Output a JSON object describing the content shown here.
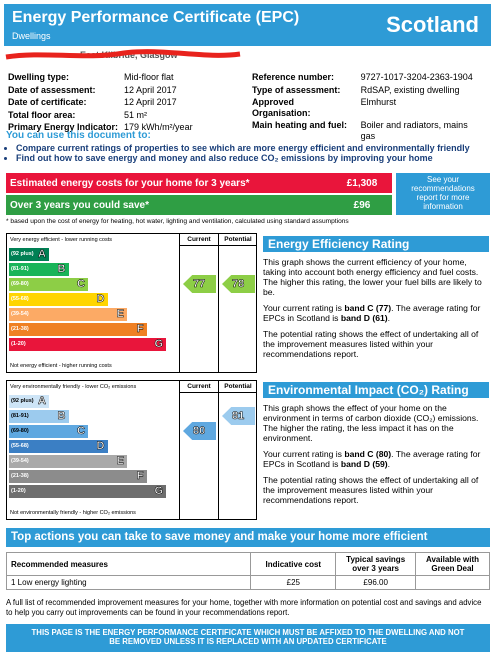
{
  "header": {
    "title": "Energy Performance Certificate (EPC)",
    "subtitle": "Dwellings",
    "country": "Scotland"
  },
  "address": "East Kilbride, Glasgow",
  "details_left": [
    [
      "Dwelling type:",
      "Mid-floor flat"
    ],
    [
      "Date of assessment:",
      "12 April 2017"
    ],
    [
      "Date of certificate:",
      "12 April 2017"
    ],
    [
      "Total floor area:",
      "51 m²"
    ],
    [
      "Primary Energy Indicator:",
      "179 kWh/m²/year"
    ]
  ],
  "details_right": [
    [
      "Reference number:",
      "9727-1017-3204-2363-1904"
    ],
    [
      "Type of assessment:",
      "RdSAP, existing dwelling"
    ],
    [
      "Approved Organisation:",
      "Elmhurst"
    ],
    [
      "Main heating and fuel:",
      "Boiler and radiators, mains gas"
    ]
  ],
  "uses": {
    "heading": "You can use this document to:",
    "bullets": [
      "Compare current ratings of properties to see which are more energy efficient and environmentally friendly",
      "Find out how to save energy and money and also reduce CO₂ emissions by improving your home"
    ]
  },
  "costs": {
    "rows": [
      [
        "Estimated energy costs for your home for 3 years*",
        "£1,308"
      ],
      [
        "Over 3 years you could save*",
        "£96"
      ]
    ],
    "side": "See your recommendations report for more information",
    "footnote": "* based upon the cost of energy for heating, hot water, lighting and ventilation, calculated using standard assumptions"
  },
  "efficiency": {
    "top_label": "Very energy efficient - lower running costs",
    "bottom_label": "Not energy efficient - higher running costs",
    "current_header": "Current",
    "potential_header": "Potential",
    "ranges": [
      "(92 plus)",
      "(81-91)",
      "(69-80)",
      "(55-68)",
      "(39-54)",
      "(21-38)",
      "(1-20)"
    ],
    "letters": [
      "A",
      "B",
      "C",
      "D",
      "E",
      "F",
      "G"
    ],
    "colors": [
      "#008054",
      "#19b459",
      "#8dce46",
      "#ffd500",
      "#fcaa65",
      "#ef8023",
      "#e9153b"
    ],
    "current": 77,
    "potential": 78,
    "heading": "Energy Efficiency Rating",
    "paragraphs": [
      [
        "This graph shows the current efficiency of your home, taking into account both energy efficiency and fuel costs. The higher this rating, the lower your fuel bills are likely to be."
      ],
      [
        "Your current rating is ",
        "band C (77)",
        ". The average rating for EPCs in Scotland is ",
        "band D (61)",
        "."
      ],
      [
        "The potential rating shows the effect of undertaking all of the improvement measures listed within your recommendations report."
      ]
    ]
  },
  "impact": {
    "top_label": "Very environmentally friendly - lower CO₂ emissions",
    "bottom_label": "Not environmentally friendly - higher CO₂ emissions",
    "current_header": "Current",
    "potential_header": "Potential",
    "ranges": [
      "(92 plus)",
      "(81-91)",
      "(69-80)",
      "(55-68)",
      "(39-54)",
      "(21-38)",
      "(1-20)"
    ],
    "letters": [
      "A",
      "B",
      "C",
      "D",
      "E",
      "F",
      "G"
    ],
    "colors": [
      "#cde4f6",
      "#9ccbee",
      "#5fa8e0",
      "#3b7fc4",
      "#a9a9a9",
      "#8c8c8c",
      "#6e6e6e"
    ],
    "current": 80,
    "potential": 81,
    "heading": "Environmental Impact (CO₂) Rating",
    "paragraphs": [
      [
        "This graph shows the effect of your home on the environment in terms of carbon dioxide (CO₂) emissions. The higher the rating, the less impact it has on the environment."
      ],
      [
        "Your current rating is ",
        "band C (80)",
        ". The average rating for EPCs in Scotland is ",
        "band D (59)",
        "."
      ],
      [
        "The potential rating shows the effect of undertaking all of the improvement measures listed within your recommendations report."
      ]
    ]
  },
  "actions": {
    "heading": "Top actions you can take to save money and make your home more efficient",
    "columns": [
      "Recommended measures",
      "Indicative cost",
      "Typical savings over 3 years",
      "Available with Green Deal"
    ],
    "rows": [
      [
        "1 Low energy lighting",
        "£25",
        "£96.00"
      ]
    ]
  },
  "footer": "A full list of recommended improvement measures for your home, together with more information on potential cost and savings and advice to help you carry out improvements can be found in your recommendations report.",
  "banner": "THIS PAGE IS THE ENERGY PERFORMANCE CERTIFICATE WHICH MUST BE AFFIXED TO THE DWELLING AND NOT BE REMOVED UNLESS IT IS REPLACED WITH AN UPDATED CERTIFICATE"
}
